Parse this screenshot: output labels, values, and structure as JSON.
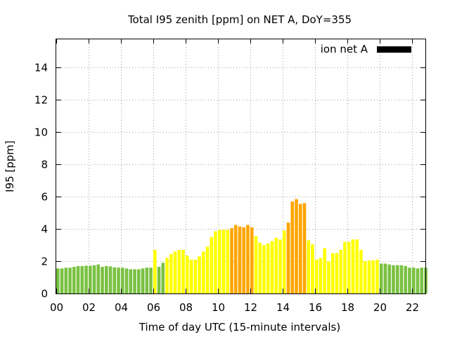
{
  "chart_data": {
    "type": "bar",
    "title": "Total I95 zenith [ppm] on NET A, DoY=355",
    "xlabel": "Time of day UTC (15-minute intervals)",
    "ylabel": "I95 [ppm]",
    "xlim": [
      0,
      22.83
    ],
    "ylim": [
      0,
      15.8
    ],
    "x_ticks": [
      "00",
      "02",
      "04",
      "06",
      "08",
      "10",
      "12",
      "14",
      "16",
      "18",
      "20",
      "22"
    ],
    "x_tick_values": [
      0,
      2,
      4,
      6,
      8,
      10,
      12,
      14,
      16,
      18,
      20,
      22
    ],
    "y_ticks": [
      "0",
      "2",
      "4",
      "6",
      "8",
      "10",
      "12",
      "14"
    ],
    "y_tick_values": [
      0,
      2,
      4,
      6,
      8,
      10,
      12,
      14
    ],
    "grid": true,
    "legend": {
      "placement": "top-right",
      "label": "ion net A",
      "color": "#000000"
    },
    "bar_width_hours": 0.2,
    "colors": {
      "green": "#7ac142",
      "yellow": "#ffff00",
      "orange": "#ffa500"
    },
    "x": [
      0,
      0.25,
      0.5,
      0.75,
      1,
      1.25,
      1.5,
      1.75,
      2,
      2.25,
      2.5,
      2.75,
      3,
      3.25,
      3.5,
      3.75,
      4,
      4.25,
      4.5,
      4.75,
      5,
      5.25,
      5.5,
      5.75,
      6,
      6.25,
      6.5,
      6.75,
      7,
      7.25,
      7.5,
      7.75,
      8,
      8.25,
      8.5,
      8.75,
      9,
      9.25,
      9.5,
      9.75,
      10,
      10.25,
      10.5,
      10.75,
      11,
      11.25,
      11.5,
      11.75,
      12,
      12.25,
      12.5,
      12.75,
      13,
      13.25,
      13.5,
      13.75,
      14,
      14.25,
      14.5,
      14.75,
      15,
      15.25,
      15.5,
      15.75,
      16,
      16.25,
      16.5,
      16.75,
      17,
      17.25,
      17.5,
      17.75,
      18,
      18.25,
      18.5,
      18.75,
      19,
      19.25,
      19.5,
      19.75,
      20,
      20.25,
      20.5,
      20.75,
      21,
      21.25,
      21.5,
      21.75,
      22,
      22.25,
      22.5,
      22.75
    ],
    "values": [
      1.55,
      1.55,
      1.6,
      1.6,
      1.65,
      1.7,
      1.7,
      1.72,
      1.72,
      1.75,
      1.8,
      1.65,
      1.7,
      1.68,
      1.62,
      1.6,
      1.6,
      1.55,
      1.5,
      1.5,
      1.5,
      1.55,
      1.6,
      1.6,
      2.7,
      1.65,
      1.9,
      2.2,
      2.45,
      2.6,
      2.7,
      2.7,
      2.35,
      2.1,
      2.1,
      2.3,
      2.6,
      2.9,
      3.5,
      3.85,
      3.95,
      3.95,
      3.95,
      4.05,
      4.25,
      4.15,
      4.1,
      4.25,
      4.1,
      3.55,
      3.15,
      3.0,
      3.1,
      3.25,
      3.45,
      3.35,
      3.9,
      4.4,
      5.7,
      5.85,
      5.55,
      5.6,
      3.3,
      3.05,
      2.1,
      2.2,
      2.8,
      2.0,
      2.5,
      2.5,
      2.7,
      3.2,
      3.2,
      3.35,
      3.35,
      2.7,
      2.0,
      2.05,
      2.05,
      2.1,
      1.85,
      1.85,
      1.8,
      1.75,
      1.75,
      1.75,
      1.7,
      1.6,
      1.6,
      1.55,
      1.6,
      1.6
    ],
    "bar_colors": [
      "green",
      "green",
      "green",
      "green",
      "green",
      "green",
      "green",
      "green",
      "green",
      "green",
      "green",
      "green",
      "green",
      "green",
      "green",
      "green",
      "green",
      "green",
      "green",
      "green",
      "green",
      "green",
      "green",
      "green",
      "yellow",
      "green",
      "green",
      "yellow",
      "yellow",
      "yellow",
      "yellow",
      "yellow",
      "yellow",
      "yellow",
      "yellow",
      "yellow",
      "yellow",
      "yellow",
      "yellow",
      "yellow",
      "yellow",
      "yellow",
      "yellow",
      "orange",
      "orange",
      "orange",
      "orange",
      "orange",
      "orange",
      "yellow",
      "yellow",
      "yellow",
      "yellow",
      "yellow",
      "yellow",
      "yellow",
      "yellow",
      "orange",
      "orange",
      "orange",
      "orange",
      "orange",
      "yellow",
      "yellow",
      "yellow",
      "yellow",
      "yellow",
      "yellow",
      "yellow",
      "yellow",
      "yellow",
      "yellow",
      "yellow",
      "yellow",
      "yellow",
      "yellow",
      "yellow",
      "yellow",
      "yellow",
      "yellow",
      "green",
      "green",
      "green",
      "green",
      "green",
      "green",
      "green",
      "green",
      "green",
      "green",
      "green",
      "green"
    ]
  }
}
